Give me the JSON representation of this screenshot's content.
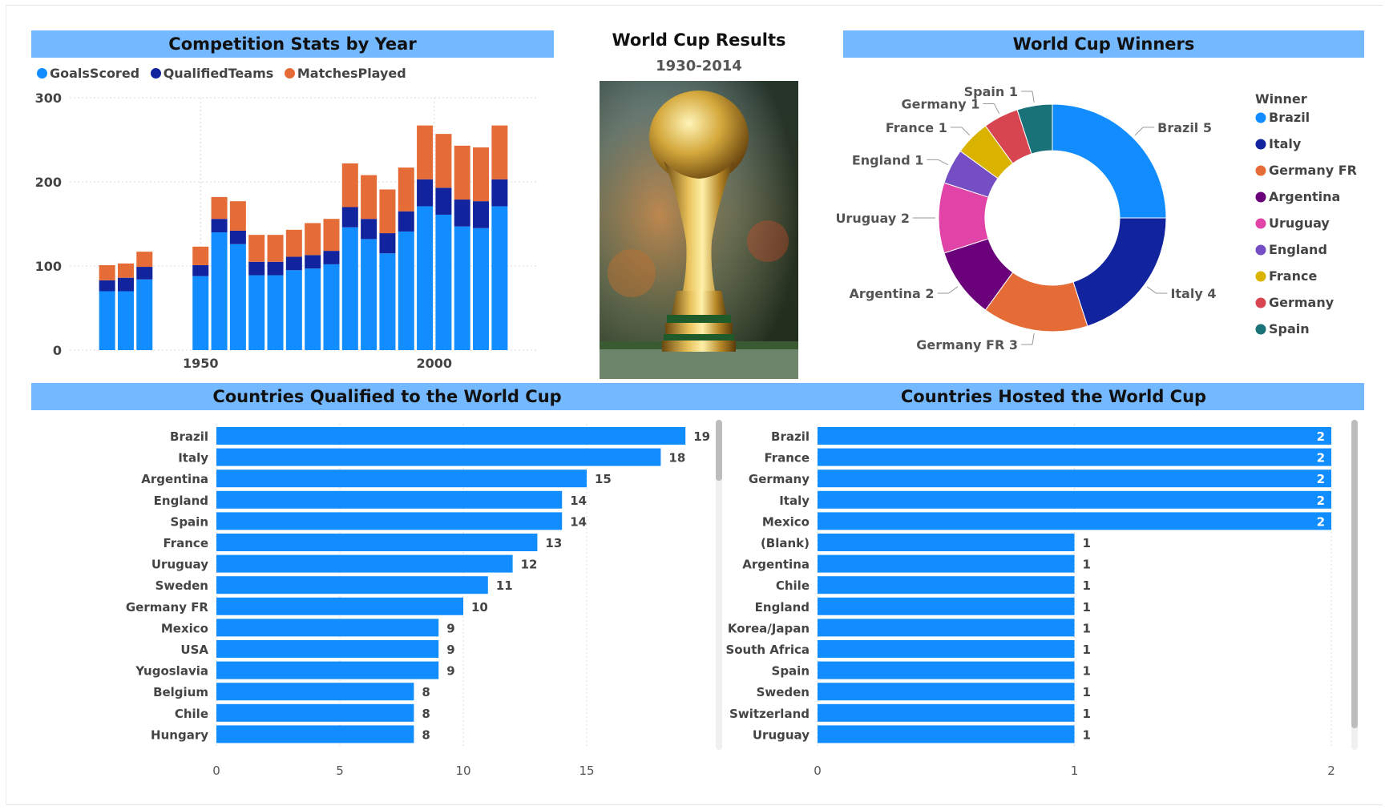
{
  "titles": {
    "stats": "Competition Stats by Year",
    "results": "World Cup Results",
    "results_sub": "1930-2014",
    "winners": "World Cup Winners",
    "qualified": "Countries Qualified to the World Cup",
    "hosted": "Countries Hosted the World Cup"
  },
  "colors": {
    "goals": "#118dff",
    "qualified": "#12239e",
    "matches": "#e66c37",
    "banner": "#74b9ff"
  },
  "chart_data": [
    {
      "type": "bar",
      "stacked": true,
      "title": "Competition Stats by Year",
      "x": [
        1930,
        1934,
        1938,
        1950,
        1954,
        1958,
        1962,
        1966,
        1970,
        1974,
        1978,
        1982,
        1986,
        1990,
        1994,
        1998,
        2002,
        2006,
        2010,
        2014
      ],
      "series": [
        {
          "name": "GoalsScored",
          "values": [
            70,
            70,
            84,
            88,
            140,
            126,
            89,
            89,
            95,
            97,
            102,
            146,
            132,
            115,
            141,
            171,
            161,
            147,
            145,
            171
          ]
        },
        {
          "name": "QualifiedTeams",
          "values": [
            13,
            16,
            15,
            13,
            16,
            16,
            16,
            16,
            16,
            16,
            16,
            24,
            24,
            24,
            24,
            32,
            32,
            32,
            32,
            32
          ]
        },
        {
          "name": "MatchesPlayed",
          "values": [
            18,
            17,
            18,
            22,
            26,
            35,
            32,
            32,
            32,
            38,
            38,
            52,
            52,
            52,
            52,
            64,
            64,
            64,
            64,
            64
          ]
        }
      ],
      "ylim": [
        0,
        300
      ],
      "yticks": [
        0,
        100,
        200,
        300
      ],
      "xticks": [
        1950,
        2000
      ],
      "xlim": [
        1922,
        2022
      ],
      "legend": "top-left",
      "grid": true
    },
    {
      "type": "pie",
      "donut": true,
      "title": "World Cup Winners",
      "legend_title": "Winner",
      "legend": "right",
      "labels": [
        "Brazil",
        "Italy",
        "Germany FR",
        "Argentina",
        "Uruguay",
        "England",
        "France",
        "Germany",
        "Spain"
      ],
      "values": [
        5,
        4,
        3,
        2,
        2,
        1,
        1,
        1,
        1
      ],
      "colors": [
        "#118dff",
        "#12239e",
        "#e66c37",
        "#6b007b",
        "#e044a7",
        "#744ec2",
        "#d9b300",
        "#d64550",
        "#197278"
      ]
    },
    {
      "type": "bar",
      "orientation": "horizontal",
      "title": "Countries Qualified to the World Cup",
      "categories": [
        "Brazil",
        "Italy",
        "Argentina",
        "England",
        "Spain",
        "France",
        "Uruguay",
        "Sweden",
        "Germany FR",
        "Mexico",
        "USA",
        "Yugoslavia",
        "Belgium",
        "Chile",
        "Hungary"
      ],
      "values": [
        19,
        18,
        15,
        14,
        14,
        13,
        12,
        11,
        10,
        9,
        9,
        9,
        8,
        8,
        8
      ],
      "xlim": [
        0,
        20
      ],
      "xticks": [
        0,
        5,
        10,
        15
      ]
    },
    {
      "type": "bar",
      "orientation": "horizontal",
      "title": "Countries Hosted the World Cup",
      "categories": [
        "Brazil",
        "France",
        "Germany",
        "Italy",
        "Mexico",
        "(Blank)",
        "Argentina",
        "Chile",
        "England",
        "Korea/Japan",
        "South Africa",
        "Spain",
        "Sweden",
        "Switzerland",
        "Uruguay"
      ],
      "values": [
        2,
        2,
        2,
        2,
        2,
        1,
        1,
        1,
        1,
        1,
        1,
        1,
        1,
        1,
        1
      ],
      "xlim": [
        0,
        2
      ],
      "xticks": [
        0,
        1,
        2
      ]
    }
  ]
}
